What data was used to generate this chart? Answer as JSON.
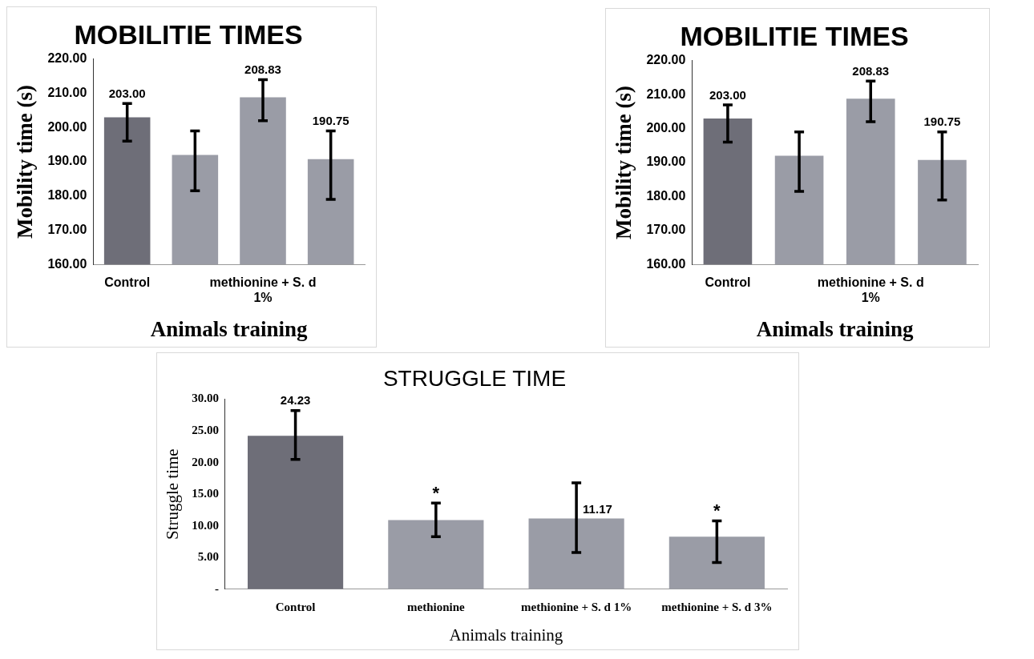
{
  "chart_data": [
    {
      "type": "bar",
      "title": "MOBILITIE TIMES",
      "xlabel": "Animals training",
      "ylabel": "Mobility time (s)",
      "categories": [
        "Control",
        null,
        "methionine + S. d 1%",
        null
      ],
      "values": [
        203.0,
        192.0,
        208.83,
        190.75
      ],
      "colors": [
        "#6e6e78",
        "#9a9ca6",
        "#9a9ca6",
        "#9a9ca6"
      ],
      "errors": [
        [
          196,
          207
        ],
        [
          181.5,
          199
        ],
        [
          202,
          214
        ],
        [
          179,
          199
        ]
      ],
      "value_labels": [
        "203.00",
        null,
        "208.83",
        "190.75"
      ],
      "ylim": [
        160,
        220
      ],
      "yticks": [
        {
          "value": 160,
          "label": "160.00"
        },
        {
          "value": 170,
          "label": "170.00"
        },
        {
          "value": 180,
          "label": "180.00"
        },
        {
          "value": 190,
          "label": "190.00"
        },
        {
          "value": 200,
          "label": "200.00"
        },
        {
          "value": 210,
          "label": "210.00"
        },
        {
          "value": 220,
          "label": "220.00"
        }
      ],
      "grid": false,
      "legend": false
    },
    {
      "type": "bar",
      "title": "MOBILITIE TIMES",
      "xlabel": "Animals training",
      "ylabel": "Mobility time (s)",
      "categories": [
        "Control",
        null,
        "methionine + S. d 1%",
        null
      ],
      "values": [
        203.0,
        192.0,
        208.83,
        190.75
      ],
      "colors": [
        "#6e6e78",
        "#9a9ca6",
        "#9a9ca6",
        "#9a9ca6"
      ],
      "errors": [
        [
          196,
          207
        ],
        [
          181.5,
          199
        ],
        [
          202,
          214
        ],
        [
          179,
          199
        ]
      ],
      "value_labels": [
        "203.00",
        null,
        "208.83",
        "190.75"
      ],
      "ylim": [
        160,
        220
      ],
      "yticks": [
        {
          "value": 160,
          "label": "160.00"
        },
        {
          "value": 170,
          "label": "170.00"
        },
        {
          "value": 180,
          "label": "180.00"
        },
        {
          "value": 190,
          "label": "190.00"
        },
        {
          "value": 200,
          "label": "200.00"
        },
        {
          "value": 210,
          "label": "210.00"
        },
        {
          "value": 220,
          "label": "220.00"
        }
      ],
      "grid": false,
      "legend": false
    },
    {
      "type": "bar",
      "title": "STRUGGLE TIME",
      "xlabel": "Animals training",
      "ylabel": "Struggle time",
      "categories": [
        "Control",
        "methionine",
        "methionine + S. d 1%",
        "methionine + S. d 3%"
      ],
      "values": [
        24.23,
        10.9,
        11.17,
        8.3
      ],
      "colors": [
        "#6e6e78",
        "#9a9ca6",
        "#9a9ca6",
        "#9a9ca6"
      ],
      "errors": [
        [
          20.5,
          28.2
        ],
        [
          8.3,
          13.6
        ],
        [
          5.8,
          16.8
        ],
        [
          4.2,
          10.8
        ]
      ],
      "value_labels": [
        "24.23",
        "*",
        "11.17",
        "*"
      ],
      "ylim": [
        0,
        30
      ],
      "yticks": [
        {
          "value": 0,
          "label": "-"
        },
        {
          "value": 5,
          "label": "5.00"
        },
        {
          "value": 10,
          "label": "10.00"
        },
        {
          "value": 15,
          "label": "15.00"
        },
        {
          "value": 20,
          "label": "20.00"
        },
        {
          "value": 25,
          "label": "25.00"
        },
        {
          "value": 30,
          "label": "30.00"
        }
      ],
      "grid": false,
      "legend": false
    }
  ]
}
